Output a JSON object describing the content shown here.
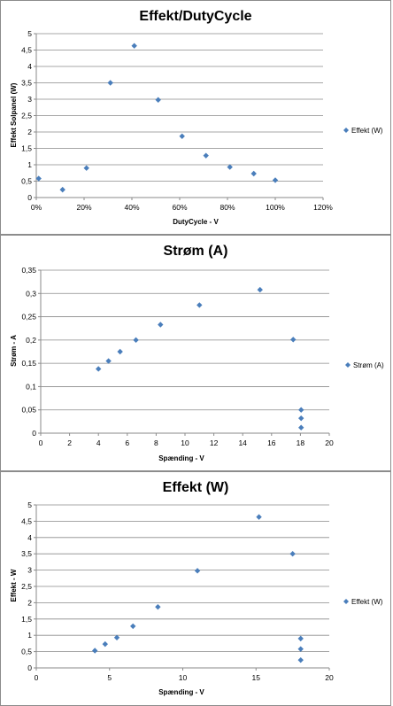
{
  "colors": {
    "marker": "#4a7ebb",
    "grid": "#8a8a8a"
  },
  "chart_data": [
    {
      "type": "scatter",
      "title": "Effekt/DutyCycle",
      "xlabel": "DutyCycle - V",
      "ylabel": "Effekt Solpanel (W)",
      "xlim": [
        0,
        1.2
      ],
      "ylim": [
        0,
        5
      ],
      "x_ticks": [
        "0%",
        "20%",
        "40%",
        "60%",
        "80%",
        "100%",
        "120%"
      ],
      "y_ticks": [
        "0",
        "0,5",
        "1",
        "1,5",
        "2",
        "2,5",
        "3",
        "3,5",
        "4",
        "4,5",
        "5"
      ],
      "legend_position": "right",
      "grid": "horizontal",
      "series": [
        {
          "name": "Effekt (W)",
          "x": [
            0.01,
            0.11,
            0.21,
            0.31,
            0.41,
            0.51,
            0.61,
            0.71,
            0.81,
            0.91,
            1.0
          ],
          "y": [
            0.58,
            0.24,
            0.9,
            3.5,
            4.63,
            2.98,
            1.87,
            1.28,
            0.93,
            0.73,
            0.53
          ]
        }
      ]
    },
    {
      "type": "scatter",
      "title": "Strøm (A)",
      "xlabel": "Spænding - V",
      "ylabel": "Strøm - A",
      "xlim": [
        0,
        20
      ],
      "ylim": [
        0,
        0.35
      ],
      "x_ticks": [
        "0",
        "2",
        "4",
        "6",
        "8",
        "10",
        "12",
        "14",
        "16",
        "18",
        "20"
      ],
      "y_ticks": [
        "0",
        "0,05",
        "0,1",
        "0,15",
        "0,2",
        "0,25",
        "0,3",
        "0,35"
      ],
      "legend_position": "right",
      "grid": "horizontal",
      "series": [
        {
          "name": "Strøm (A)",
          "x": [
            4.0,
            4.7,
            5.5,
            6.6,
            8.3,
            11.0,
            15.2,
            17.5,
            18.05,
            18.05,
            18.05
          ],
          "y": [
            0.138,
            0.155,
            0.175,
            0.2,
            0.233,
            0.275,
            0.308,
            0.201,
            0.05,
            0.032,
            0.012
          ]
        }
      ]
    },
    {
      "type": "scatter",
      "title": "Effekt (W)",
      "xlabel": "Spænding - V",
      "ylabel": "Effekt - W",
      "xlim": [
        0,
        20
      ],
      "ylim": [
        0,
        5
      ],
      "x_ticks": [
        "0",
        "5",
        "10",
        "15",
        "20"
      ],
      "y_ticks": [
        "0",
        "0,5",
        "1",
        "1,5",
        "2",
        "2,5",
        "3",
        "3,5",
        "4",
        "4,5",
        "5"
      ],
      "legend_position": "right",
      "grid": "horizontal",
      "series": [
        {
          "name": "Effekt (W)",
          "x": [
            4.0,
            4.7,
            5.5,
            6.6,
            8.3,
            11.0,
            15.2,
            17.5,
            18.05,
            18.05,
            18.05
          ],
          "y": [
            0.53,
            0.73,
            0.93,
            1.28,
            1.87,
            2.98,
            4.63,
            3.5,
            0.9,
            0.58,
            0.24
          ]
        }
      ]
    }
  ]
}
